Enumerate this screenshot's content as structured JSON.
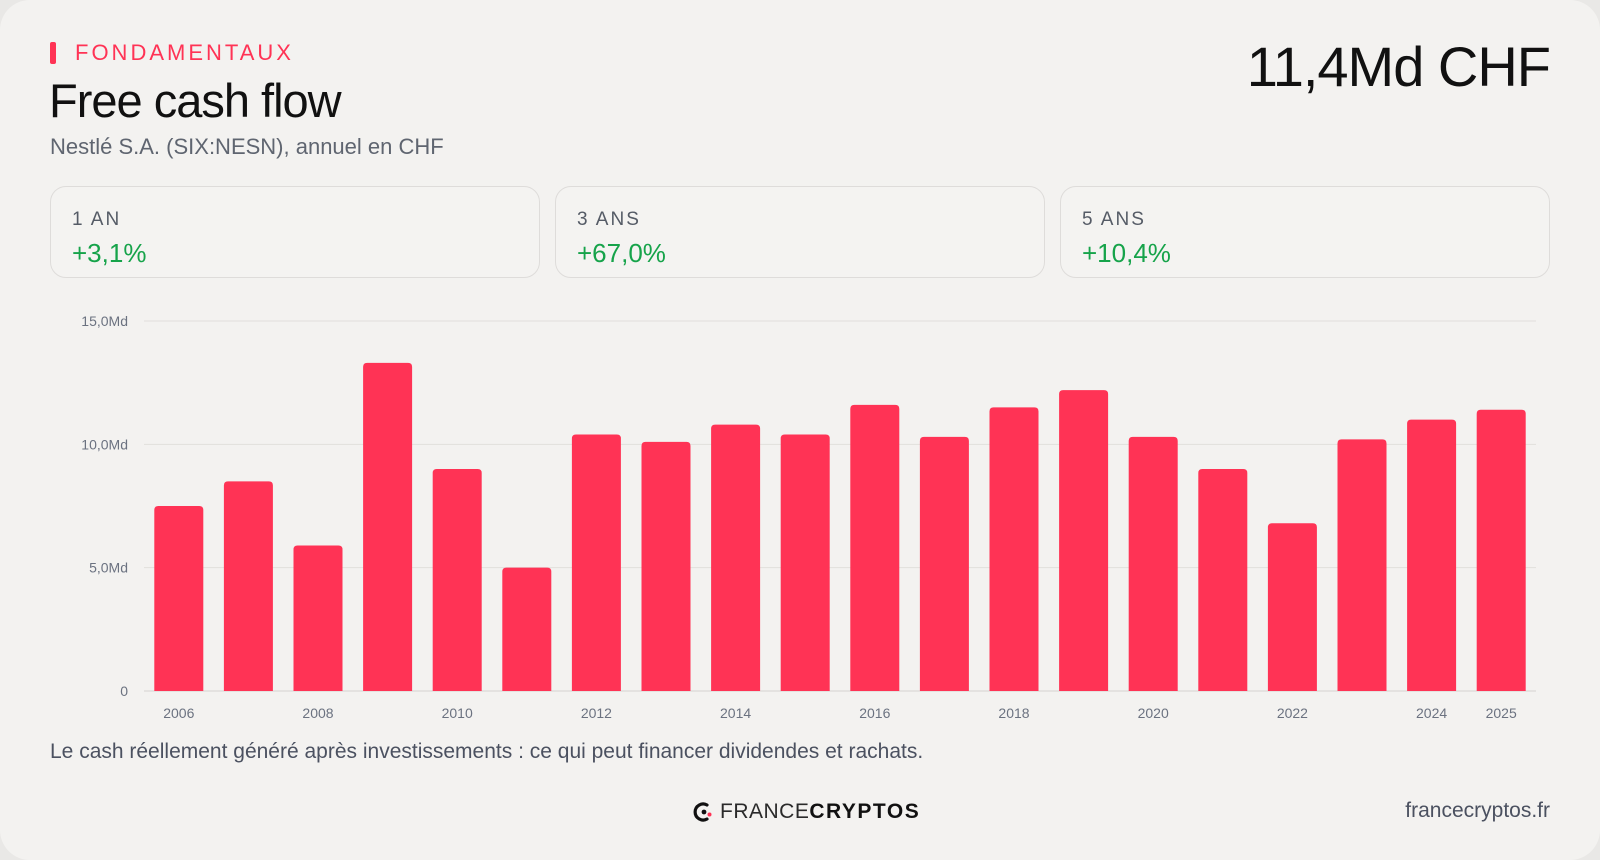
{
  "header": {
    "kicker": "FONDAMENTAUX",
    "title": "Free cash flow",
    "subtitle": "Nestlé S.A. (SIX:NESN), annuel en CHF",
    "headline_value": "11,4Md CHF"
  },
  "stats": [
    {
      "label": "1 AN",
      "value": "+3,1%"
    },
    {
      "label": "3 ANS",
      "value": "+67,0%"
    },
    {
      "label": "5 ANS",
      "value": "+10,4%"
    }
  ],
  "colors": {
    "accent": "#ff3355",
    "bar": "#ff3355",
    "positive": "#16a34a",
    "background": "#f3f2f0"
  },
  "chart_data": {
    "type": "bar",
    "categories": [
      "2006",
      "2007",
      "2008",
      "2009",
      "2010",
      "2011",
      "2012",
      "2013",
      "2014",
      "2015",
      "2016",
      "2017",
      "2018",
      "2019",
      "2020",
      "2021",
      "2022",
      "2023",
      "2024",
      "2025"
    ],
    "values": [
      7.5,
      8.5,
      5.9,
      13.3,
      9.0,
      5.0,
      10.4,
      10.1,
      10.8,
      10.4,
      11.6,
      10.3,
      11.5,
      12.2,
      10.3,
      9.0,
      6.8,
      10.2,
      11.0,
      11.4
    ],
    "x_tick_labels": [
      "2006",
      "2008",
      "2010",
      "2012",
      "2014",
      "2016",
      "2018",
      "2020",
      "2022",
      "2024",
      "2025"
    ],
    "y_ticks": [
      0,
      5,
      10,
      15
    ],
    "y_tick_labels": [
      "0",
      "5,0Md",
      "10,0Md",
      "15,0Md"
    ],
    "ylim": [
      0,
      15
    ],
    "unit": "Md CHF",
    "grid": true,
    "title": "Free cash flow",
    "xlabel": "",
    "ylabel": ""
  },
  "footer": {
    "caption": "Le cash réellement généré après investissements : ce qui peut financer dividendes et rachats.",
    "logo_light": "FRANCE",
    "logo_bold": "CRYPTOS",
    "site": "francecryptos.fr"
  }
}
